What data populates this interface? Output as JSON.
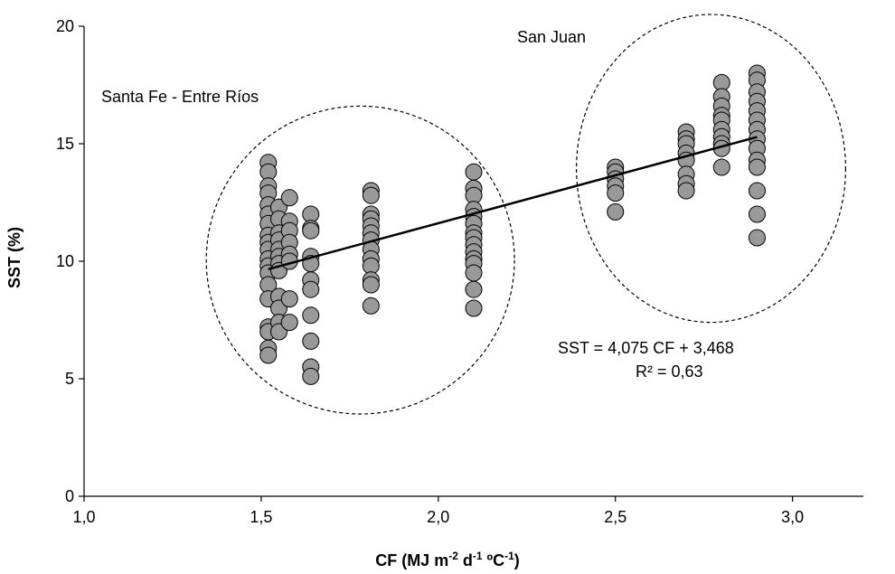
{
  "chart_data": {
    "type": "scatter",
    "xlabel": "CF (MJ m",
    "xlabel_sup1": "-2",
    "xlabel_mid1": " d",
    "xlabel_sup2": "-1",
    "xlabel_mid2": " ºC",
    "xlabel_sup3": "-1",
    "xlabel_end": ")",
    "ylabel": "SST (%)",
    "xlim": [
      1.0,
      3.2
    ],
    "ylim": [
      0,
      20
    ],
    "xticks": [
      1.0,
      1.5,
      2.0,
      2.5,
      3.0
    ],
    "xtick_labels": [
      "1,0",
      "1,5",
      "2,0",
      "2,5",
      "3,0"
    ],
    "yticks": [
      0,
      5,
      10,
      15,
      20
    ],
    "ytick_labels": [
      "0",
      "5",
      "10",
      "15",
      "20"
    ],
    "grid": false,
    "marker_color": "#999999",
    "marker_edge": "#000000",
    "points": [
      [
        1.52,
        14.2
      ],
      [
        1.52,
        13.8
      ],
      [
        1.52,
        13.2
      ],
      [
        1.52,
        12.9
      ],
      [
        1.52,
        12.4
      ],
      [
        1.52,
        12.0
      ],
      [
        1.52,
        11.6
      ],
      [
        1.52,
        11.1
      ],
      [
        1.52,
        10.8
      ],
      [
        1.52,
        10.5
      ],
      [
        1.52,
        10.1
      ],
      [
        1.52,
        9.8
      ],
      [
        1.52,
        9.5
      ],
      [
        1.52,
        9.0
      ],
      [
        1.52,
        8.4
      ],
      [
        1.52,
        7.2
      ],
      [
        1.52,
        7.0
      ],
      [
        1.52,
        6.3
      ],
      [
        1.52,
        6.0
      ],
      [
        1.55,
        12.3
      ],
      [
        1.55,
        11.8
      ],
      [
        1.55,
        11.2
      ],
      [
        1.55,
        10.9
      ],
      [
        1.55,
        10.5
      ],
      [
        1.55,
        10.2
      ],
      [
        1.55,
        9.9
      ],
      [
        1.55,
        9.6
      ],
      [
        1.55,
        8.5
      ],
      [
        1.55,
        8.0
      ],
      [
        1.55,
        7.4
      ],
      [
        1.55,
        7.0
      ],
      [
        1.58,
        12.7
      ],
      [
        1.58,
        11.7
      ],
      [
        1.58,
        11.3
      ],
      [
        1.58,
        10.8
      ],
      [
        1.58,
        10.3
      ],
      [
        1.58,
        10.0
      ],
      [
        1.58,
        8.4
      ],
      [
        1.58,
        7.4
      ],
      [
        1.64,
        12.0
      ],
      [
        1.64,
        11.4
      ],
      [
        1.64,
        11.3
      ],
      [
        1.64,
        10.2
      ],
      [
        1.64,
        9.9
      ],
      [
        1.64,
        9.2
      ],
      [
        1.64,
        8.8
      ],
      [
        1.64,
        7.7
      ],
      [
        1.64,
        6.6
      ],
      [
        1.64,
        5.5
      ],
      [
        1.64,
        5.1
      ],
      [
        1.81,
        13.0
      ],
      [
        1.81,
        12.8
      ],
      [
        1.81,
        12.0
      ],
      [
        1.81,
        11.8
      ],
      [
        1.81,
        11.5
      ],
      [
        1.81,
        11.2
      ],
      [
        1.81,
        10.9
      ],
      [
        1.81,
        10.5
      ],
      [
        1.81,
        10.1
      ],
      [
        1.81,
        9.8
      ],
      [
        1.81,
        9.2
      ],
      [
        1.81,
        9.0
      ],
      [
        1.81,
        8.1
      ],
      [
        2.1,
        13.8
      ],
      [
        2.1,
        13.1
      ],
      [
        2.1,
        12.8
      ],
      [
        2.1,
        12.2
      ],
      [
        2.1,
        11.9
      ],
      [
        2.1,
        11.6
      ],
      [
        2.1,
        11.2
      ],
      [
        2.1,
        11.0
      ],
      [
        2.1,
        10.7
      ],
      [
        2.1,
        10.4
      ],
      [
        2.1,
        10.1
      ],
      [
        2.1,
        9.9
      ],
      [
        2.1,
        9.5
      ],
      [
        2.1,
        8.8
      ],
      [
        2.1,
        8.0
      ],
      [
        2.5,
        14.0
      ],
      [
        2.5,
        13.8
      ],
      [
        2.5,
        13.5
      ],
      [
        2.5,
        13.2
      ],
      [
        2.5,
        12.9
      ],
      [
        2.5,
        12.1
      ],
      [
        2.7,
        15.5
      ],
      [
        2.7,
        15.2
      ],
      [
        2.7,
        15.0
      ],
      [
        2.7,
        14.6
      ],
      [
        2.7,
        14.3
      ],
      [
        2.7,
        13.7
      ],
      [
        2.7,
        13.3
      ],
      [
        2.7,
        13.0
      ],
      [
        2.8,
        17.6
      ],
      [
        2.8,
        17.0
      ],
      [
        2.8,
        16.6
      ],
      [
        2.8,
        16.2
      ],
      [
        2.8,
        16.0
      ],
      [
        2.8,
        15.6
      ],
      [
        2.8,
        15.3
      ],
      [
        2.8,
        15.0
      ],
      [
        2.8,
        14.8
      ],
      [
        2.8,
        14.0
      ],
      [
        2.9,
        18.0
      ],
      [
        2.9,
        17.7
      ],
      [
        2.9,
        17.2
      ],
      [
        2.9,
        16.8
      ],
      [
        2.9,
        16.4
      ],
      [
        2.9,
        16.0
      ],
      [
        2.9,
        15.6
      ],
      [
        2.9,
        15.2
      ],
      [
        2.9,
        14.8
      ],
      [
        2.9,
        14.3
      ],
      [
        2.9,
        14.0
      ],
      [
        2.9,
        13.0
      ],
      [
        2.9,
        12.0
      ],
      [
        2.9,
        11.0
      ]
    ],
    "trendline": {
      "slope": 4.075,
      "intercept": 3.468,
      "x_start": 1.52,
      "x_end": 2.9
    },
    "regions": [
      {
        "label": "Santa Fe - Entre Ríos",
        "cx": 1.78,
        "cy": 10.05,
        "rx": 0.435,
        "ry": 6.55
      },
      {
        "label": "San Juan",
        "cx": 2.77,
        "cy": 13.95,
        "rx": 0.38,
        "ry": 6.55
      }
    ],
    "equation": "SST  = 4,075 CF + 3,468",
    "r2": "R² = 0,63"
  }
}
